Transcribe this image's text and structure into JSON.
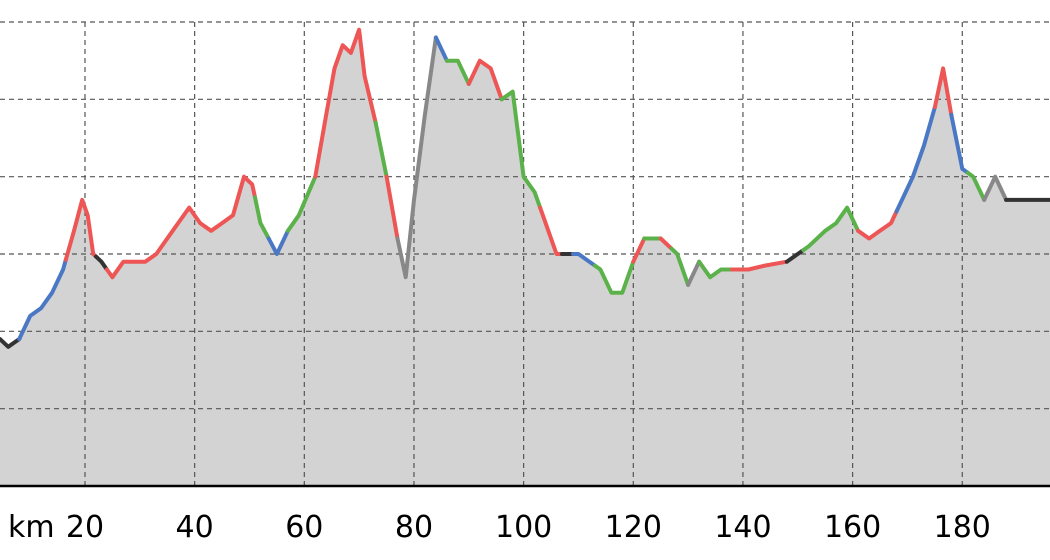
{
  "chart_data": {
    "type": "area",
    "title": "",
    "xlabel": "",
    "ylabel": "",
    "x_unit_label": "km",
    "xlim": [
      4.5,
      196
    ],
    "ylim": [
      0,
      6.0
    ],
    "grid": {
      "vertical": true,
      "horizontal": true,
      "style": "dashed"
    },
    "x_ticks": [
      {
        "value": 20,
        "label": "20"
      },
      {
        "value": 40,
        "label": "40"
      },
      {
        "value": 60,
        "label": "60"
      },
      {
        "value": 80,
        "label": "80"
      },
      {
        "value": 100,
        "label": "100"
      },
      {
        "value": 120,
        "label": "120"
      },
      {
        "value": 140,
        "label": "140"
      },
      {
        "value": 160,
        "label": "160"
      },
      {
        "value": 180,
        "label": "180"
      }
    ],
    "y_gridlines": [
      1,
      2,
      3,
      4,
      5,
      6
    ],
    "fill_color": "#d3d3d3",
    "segment_colors": {
      "red": "#ee5555",
      "blue": "#4a78c4",
      "green": "#5cb24a",
      "gray": "#888888",
      "dark": "#333333"
    },
    "profile": [
      [
        4.5,
        1.9
      ],
      [
        6,
        1.8
      ],
      [
        8,
        1.9
      ],
      [
        10,
        2.2
      ],
      [
        12,
        2.3
      ],
      [
        14,
        2.5
      ],
      [
        16,
        2.8
      ],
      [
        18,
        3.3
      ],
      [
        19.5,
        3.7
      ],
      [
        20.5,
        3.5
      ],
      [
        21.5,
        3.0
      ],
      [
        23,
        2.9
      ],
      [
        25,
        2.7
      ],
      [
        27,
        2.9
      ],
      [
        29,
        2.9
      ],
      [
        31,
        2.9
      ],
      [
        33,
        3.0
      ],
      [
        36,
        3.3
      ],
      [
        39,
        3.6
      ],
      [
        41,
        3.4
      ],
      [
        43,
        3.3
      ],
      [
        45,
        3.4
      ],
      [
        47,
        3.5
      ],
      [
        49,
        4.0
      ],
      [
        50.5,
        3.9
      ],
      [
        52,
        3.4
      ],
      [
        53.5,
        3.2
      ],
      [
        55,
        3.0
      ],
      [
        57,
        3.3
      ],
      [
        59,
        3.5
      ],
      [
        62,
        4.0
      ],
      [
        64,
        4.8
      ],
      [
        65.5,
        5.4
      ],
      [
        67,
        5.7
      ],
      [
        68.5,
        5.6
      ],
      [
        70,
        5.9
      ],
      [
        71,
        5.3
      ],
      [
        73,
        4.7
      ],
      [
        75,
        4.0
      ],
      [
        77,
        3.2
      ],
      [
        78.5,
        2.7
      ],
      [
        80,
        3.7
      ],
      [
        82,
        4.8
      ],
      [
        84,
        5.8
      ],
      [
        86,
        5.5
      ],
      [
        88,
        5.5
      ],
      [
        90,
        5.2
      ],
      [
        92,
        5.5
      ],
      [
        94,
        5.4
      ],
      [
        96,
        5.0
      ],
      [
        98,
        5.1
      ],
      [
        100,
        4.0
      ],
      [
        102,
        3.8
      ],
      [
        104,
        3.4
      ],
      [
        106,
        3.0
      ],
      [
        108,
        3.0
      ],
      [
        110,
        3.0
      ],
      [
        112,
        2.9
      ],
      [
        114,
        2.8
      ],
      [
        116,
        2.5
      ],
      [
        118,
        2.5
      ],
      [
        120,
        2.9
      ],
      [
        122,
        3.2
      ],
      [
        125,
        3.2
      ],
      [
        128,
        3.0
      ],
      [
        130,
        2.6
      ],
      [
        132,
        2.9
      ],
      [
        134,
        2.7
      ],
      [
        136,
        2.8
      ],
      [
        138,
        2.8
      ],
      [
        141,
        2.8
      ],
      [
        144,
        2.85
      ],
      [
        148,
        2.9
      ],
      [
        152,
        3.1
      ],
      [
        155,
        3.3
      ],
      [
        157,
        3.4
      ],
      [
        159,
        3.6
      ],
      [
        161,
        3.3
      ],
      [
        163,
        3.2
      ],
      [
        165,
        3.3
      ],
      [
        167,
        3.4
      ],
      [
        169,
        3.7
      ],
      [
        171,
        4.0
      ],
      [
        173,
        4.4
      ],
      [
        175,
        4.9
      ],
      [
        176.5,
        5.4
      ],
      [
        178,
        4.8
      ],
      [
        180,
        4.1
      ],
      [
        182,
        4.0
      ],
      [
        184,
        3.7
      ],
      [
        186,
        4.0
      ],
      [
        188,
        3.7
      ],
      [
        190,
        3.7
      ],
      [
        196,
        3.7
      ]
    ],
    "segments": [
      {
        "from": 4.5,
        "to": 8,
        "color": "dark"
      },
      {
        "from": 8,
        "to": 16.5,
        "color": "blue"
      },
      {
        "from": 16.5,
        "to": 22,
        "color": "red"
      },
      {
        "from": 22,
        "to": 24,
        "color": "dark"
      },
      {
        "from": 24,
        "to": 51,
        "color": "red"
      },
      {
        "from": 51,
        "to": 53.5,
        "color": "green"
      },
      {
        "from": 53.5,
        "to": 57,
        "color": "blue"
      },
      {
        "from": 57,
        "to": 62,
        "color": "green"
      },
      {
        "from": 62,
        "to": 73,
        "color": "red"
      },
      {
        "from": 73,
        "to": 75,
        "color": "green"
      },
      {
        "from": 75,
        "to": 77,
        "color": "red"
      },
      {
        "from": 77,
        "to": 84,
        "color": "gray"
      },
      {
        "from": 84,
        "to": 86,
        "color": "blue"
      },
      {
        "from": 86,
        "to": 90,
        "color": "green"
      },
      {
        "from": 90,
        "to": 96,
        "color": "red"
      },
      {
        "from": 96,
        "to": 103,
        "color": "green"
      },
      {
        "from": 103,
        "to": 107,
        "color": "red"
      },
      {
        "from": 107,
        "to": 109,
        "color": "dark"
      },
      {
        "from": 109,
        "to": 113,
        "color": "blue"
      },
      {
        "from": 113,
        "to": 120,
        "color": "green"
      },
      {
        "from": 120,
        "to": 122,
        "color": "red"
      },
      {
        "from": 122,
        "to": 125,
        "color": "green"
      },
      {
        "from": 125,
        "to": 127,
        "color": "red"
      },
      {
        "from": 127,
        "to": 130,
        "color": "green"
      },
      {
        "from": 130,
        "to": 132,
        "color": "gray"
      },
      {
        "from": 132,
        "to": 138,
        "color": "green"
      },
      {
        "from": 138,
        "to": 148,
        "color": "red"
      },
      {
        "from": 148,
        "to": 151,
        "color": "dark"
      },
      {
        "from": 151,
        "to": 161,
        "color": "green"
      },
      {
        "from": 161,
        "to": 168,
        "color": "red"
      },
      {
        "from": 168,
        "to": 175,
        "color": "blue"
      },
      {
        "from": 175,
        "to": 178,
        "color": "red"
      },
      {
        "from": 178,
        "to": 181,
        "color": "blue"
      },
      {
        "from": 181,
        "to": 184,
        "color": "green"
      },
      {
        "from": 184,
        "to": 188,
        "color": "gray"
      },
      {
        "from": 188,
        "to": 196,
        "color": "dark"
      }
    ]
  }
}
